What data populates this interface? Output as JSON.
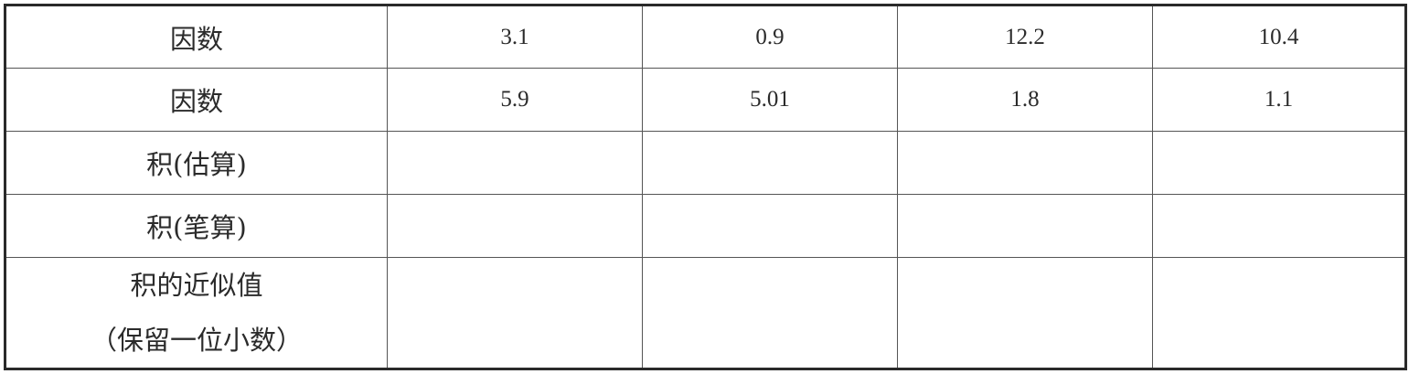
{
  "table": {
    "rows": [
      {
        "label": "因数",
        "cells": [
          "3.1",
          "0.9",
          "12.2",
          "10.4"
        ]
      },
      {
        "label": "因数",
        "cells": [
          "5.9",
          "5.01",
          "1.8",
          "1.1"
        ]
      },
      {
        "label": "积(估算)",
        "cells": [
          "",
          "",
          "",
          ""
        ]
      },
      {
        "label": "积(笔算)",
        "cells": [
          "",
          "",
          "",
          ""
        ]
      },
      {
        "label_line1": "积的近似值",
        "label_line2": "（保留一位小数）",
        "cells": [
          "",
          "",
          "",
          ""
        ]
      }
    ]
  }
}
